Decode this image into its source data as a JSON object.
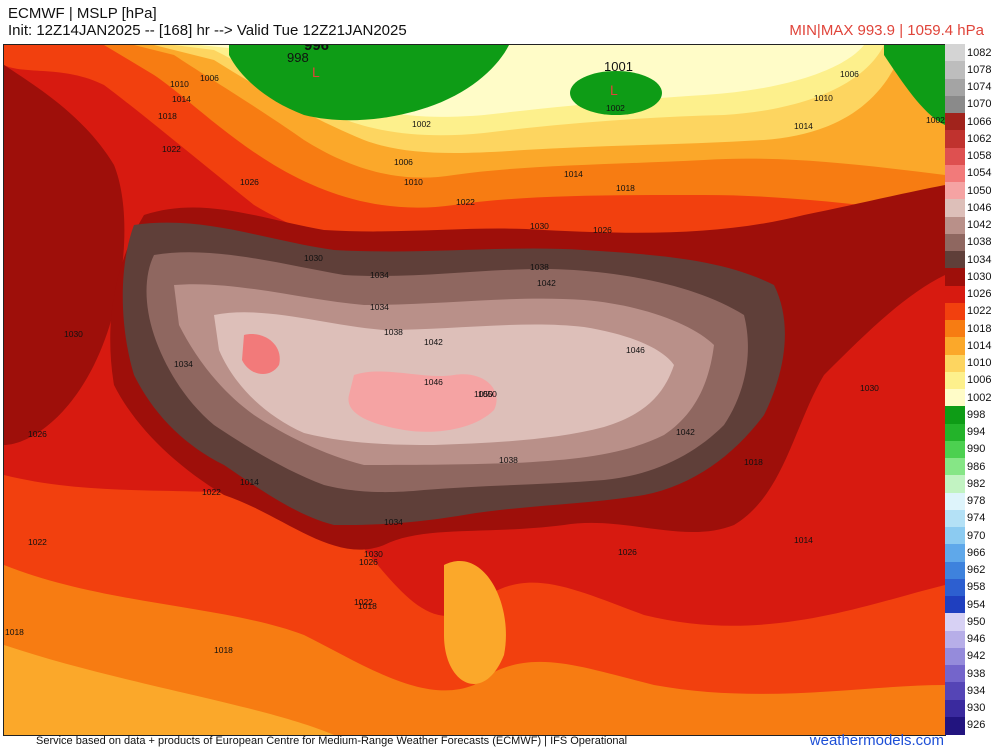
{
  "header": {
    "title": "ECMWF | MSLP [hPa]",
    "init_line": "Init: 12Z14JAN2025 -- [168] hr --> Valid Tue 12Z21JAN2025",
    "minmax": "MIN|MAX 993.9 | 1059.4 hPa"
  },
  "footer": {
    "credit": "Service based on data + products of European Centre for Medium-Range Weather Forecasts (ECMWF) | IFS Operational",
    "site": "weathermodels.com"
  },
  "colorbar": {
    "levels": [
      {
        "label": "1082",
        "color": "#d4d4d4"
      },
      {
        "label": "1078",
        "color": "#bdbdbd"
      },
      {
        "label": "1074",
        "color": "#a4a4a4"
      },
      {
        "label": "1070",
        "color": "#8a8a8a"
      },
      {
        "label": "1066",
        "color": "#a1231c"
      },
      {
        "label": "1062",
        "color": "#c0322e"
      },
      {
        "label": "1058",
        "color": "#de5050"
      },
      {
        "label": "1054",
        "color": "#f27a7a"
      },
      {
        "label": "1050",
        "color": "#f5a3a3"
      },
      {
        "label": "1046",
        "color": "#ddbfb9"
      },
      {
        "label": "1042",
        "color": "#b99089"
      },
      {
        "label": "1038",
        "color": "#8f6760"
      },
      {
        "label": "1034",
        "color": "#5f3f39"
      },
      {
        "label": "1030",
        "color": "#9e0f0a"
      },
      {
        "label": "1026",
        "color": "#d71a10"
      },
      {
        "label": "1022",
        "color": "#f2400e"
      },
      {
        "label": "1018",
        "color": "#f77c12"
      },
      {
        "label": "1014",
        "color": "#fba82a"
      },
      {
        "label": "1010",
        "color": "#fdd560"
      },
      {
        "label": "1006",
        "color": "#fdf08c"
      },
      {
        "label": "1002",
        "color": "#fffcc8"
      },
      {
        "label": "998",
        "color": "#0e9c16"
      },
      {
        "label": "994",
        "color": "#23b32a"
      },
      {
        "label": "990",
        "color": "#4cd050"
      },
      {
        "label": "986",
        "color": "#86e686"
      },
      {
        "label": "982",
        "color": "#c2f3c2"
      },
      {
        "label": "978",
        "color": "#def4fb"
      },
      {
        "label": "974",
        "color": "#b4e1f6"
      },
      {
        "label": "970",
        "color": "#8ccbf1"
      },
      {
        "label": "966",
        "color": "#5fa8ea"
      },
      {
        "label": "962",
        "color": "#3e82dd"
      },
      {
        "label": "958",
        "color": "#2d5fd0"
      },
      {
        "label": "954",
        "color": "#1f3fbf"
      },
      {
        "label": "950",
        "color": "#d7d1f4"
      },
      {
        "label": "946",
        "color": "#b7aee8"
      },
      {
        "label": "942",
        "color": "#958bdb"
      },
      {
        "label": "938",
        "color": "#7465cb"
      },
      {
        "label": "934",
        "color": "#5545b6"
      },
      {
        "label": "930",
        "color": "#3a2a9e"
      },
      {
        "label": "926",
        "color": "#22147f"
      }
    ]
  },
  "map": {
    "lows": [
      {
        "mark": "L",
        "value": "998",
        "big_value": "996"
      },
      {
        "mark": "L",
        "value": "1002",
        "big_value": "1001"
      }
    ],
    "isobar_labels": [
      "1006",
      "1010",
      "1014",
      "1018",
      "1022",
      "1026",
      "1030",
      "1034",
      "1038",
      "1042",
      "1046",
      "1050",
      "1002",
      "1006",
      "1010",
      "1014",
      "1018",
      "1022",
      "1026",
      "1030",
      "1034",
      "1038",
      "1042",
      "1046",
      "1050",
      "1042",
      "1038",
      "1034",
      "1030",
      "1026",
      "1022",
      "1018",
      "1014",
      "1018",
      "1022",
      "1026",
      "1030",
      "1034",
      "1018",
      "1022",
      "1026",
      "1030",
      "1018",
      "1014",
      "1006",
      "1010",
      "1014",
      "1002"
    ]
  }
}
